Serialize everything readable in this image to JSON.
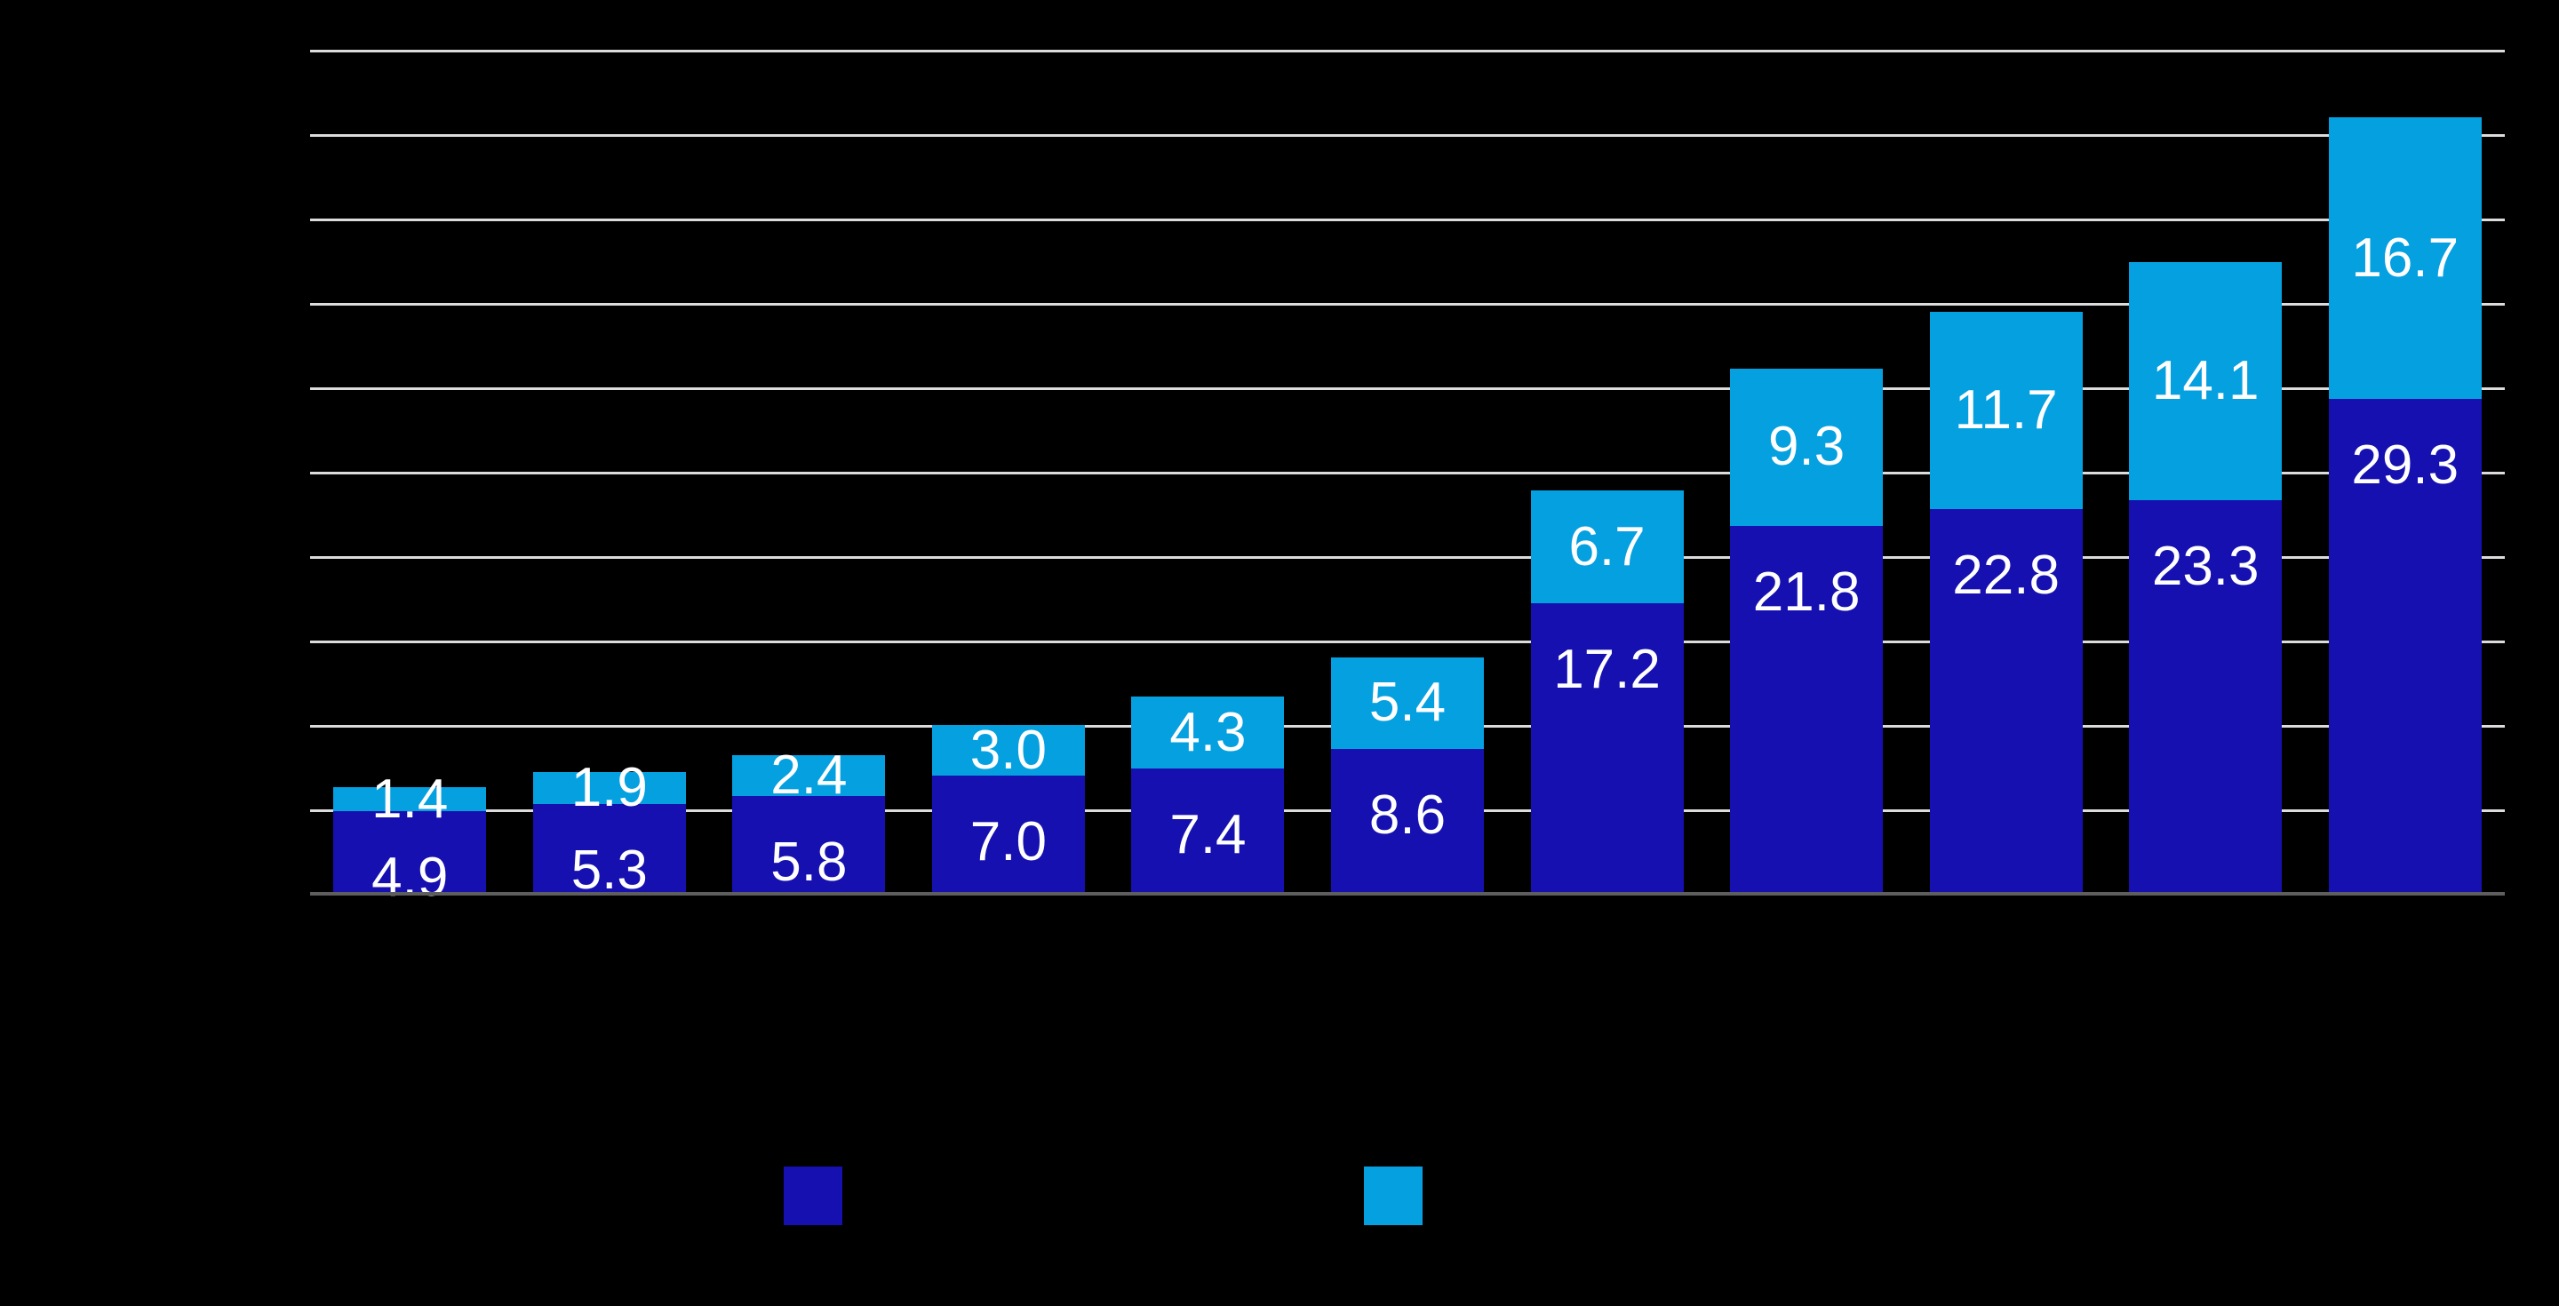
{
  "chart_data": {
    "type": "bar",
    "stacked": true,
    "orientation": "vertical",
    "background_color": "#000000",
    "num_categories": 11,
    "category_axis_labels_visible": false,
    "series": [
      {
        "name": "dark-blue-series",
        "color": "#1510af",
        "values": [
          4.9,
          5.3,
          5.8,
          7.0,
          7.4,
          8.6,
          17.2,
          21.8,
          22.8,
          23.3,
          29.3
        ]
      },
      {
        "name": "light-blue-series",
        "color": "#05a0e0",
        "values": [
          1.4,
          1.9,
          2.4,
          3.0,
          4.3,
          5.4,
          6.7,
          9.3,
          11.7,
          14.1,
          16.7
        ]
      }
    ],
    "value_labels": {
      "visible": true,
      "color": "#ffffff",
      "decimals": 1
    },
    "ylim": [
      0,
      50
    ],
    "grid": true,
    "grid_interval": 5,
    "gridline_color": "#dcdcdc",
    "baseline_color": "#5e5e5e",
    "legend": {
      "position": "bottom",
      "labels_visible": false,
      "items": [
        {
          "name": "dark-blue-key",
          "swatch_color": "#1510af"
        },
        {
          "name": "light-blue-key",
          "swatch_color": "#05a0e0"
        }
      ]
    }
  }
}
